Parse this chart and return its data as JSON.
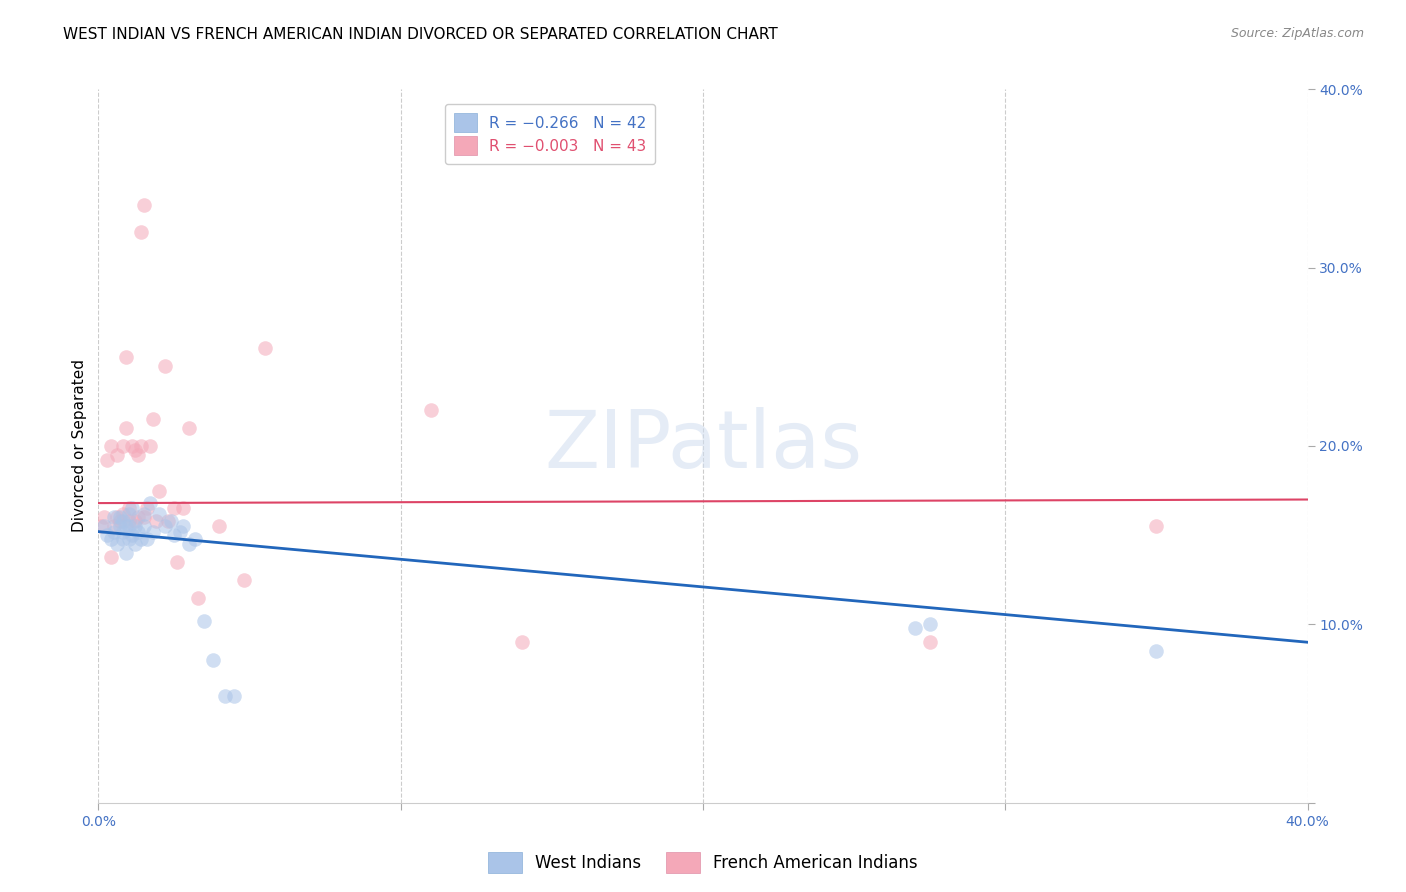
{
  "title": "WEST INDIAN VS FRENCH AMERICAN INDIAN DIVORCED OR SEPARATED CORRELATION CHART",
  "source": "Source: ZipAtlas.com",
  "ylabel": "Divorced or Separated",
  "xlim": [
    0.0,
    0.4
  ],
  "ylim": [
    0.0,
    0.4
  ],
  "xticks": [
    0.0,
    0.1,
    0.2,
    0.3,
    0.4
  ],
  "yticks": [
    0.0,
    0.1,
    0.2,
    0.3,
    0.4
  ],
  "xtick_labels": [
    "0.0%",
    "",
    "",
    "",
    "40.0%"
  ],
  "ytick_labels_right": [
    "",
    "10.0%",
    "20.0%",
    "30.0%",
    "40.0%"
  ],
  "legend_top": [
    {
      "label": "R = −0.266   N = 42",
      "color": "#aac4e8"
    },
    {
      "label": "R = −0.003   N = 43",
      "color": "#f4a8b8"
    }
  ],
  "legend_bottom": [
    {
      "label": "West Indians",
      "color": "#aac4e8"
    },
    {
      "label": "French American Indians",
      "color": "#f4a8b8"
    }
  ],
  "west_indian_x": [
    0.002,
    0.003,
    0.004,
    0.005,
    0.005,
    0.006,
    0.007,
    0.007,
    0.008,
    0.008,
    0.008,
    0.009,
    0.009,
    0.01,
    0.01,
    0.01,
    0.011,
    0.011,
    0.012,
    0.012,
    0.013,
    0.014,
    0.015,
    0.015,
    0.016,
    0.017,
    0.018,
    0.02,
    0.022,
    0.024,
    0.025,
    0.027,
    0.028,
    0.03,
    0.032,
    0.035,
    0.038,
    0.042,
    0.045,
    0.27,
    0.275,
    0.35
  ],
  "west_indian_y": [
    0.155,
    0.15,
    0.148,
    0.152,
    0.16,
    0.145,
    0.155,
    0.16,
    0.148,
    0.152,
    0.158,
    0.14,
    0.155,
    0.148,
    0.155,
    0.162,
    0.15,
    0.165,
    0.145,
    0.155,
    0.152,
    0.148,
    0.155,
    0.162,
    0.148,
    0.168,
    0.152,
    0.162,
    0.155,
    0.158,
    0.15,
    0.152,
    0.155,
    0.145,
    0.148,
    0.102,
    0.08,
    0.06,
    0.06,
    0.098,
    0.1,
    0.085
  ],
  "french_x": [
    0.001,
    0.002,
    0.003,
    0.004,
    0.004,
    0.005,
    0.006,
    0.006,
    0.007,
    0.008,
    0.008,
    0.009,
    0.009,
    0.01,
    0.01,
    0.011,
    0.012,
    0.012,
    0.013,
    0.013,
    0.014,
    0.014,
    0.015,
    0.015,
    0.016,
    0.017,
    0.018,
    0.019,
    0.02,
    0.022,
    0.023,
    0.025,
    0.026,
    0.028,
    0.03,
    0.033,
    0.04,
    0.048,
    0.055,
    0.11,
    0.14,
    0.275,
    0.35
  ],
  "french_y": [
    0.155,
    0.16,
    0.192,
    0.138,
    0.2,
    0.155,
    0.16,
    0.195,
    0.158,
    0.162,
    0.2,
    0.21,
    0.25,
    0.158,
    0.165,
    0.2,
    0.158,
    0.198,
    0.16,
    0.195,
    0.2,
    0.32,
    0.335,
    0.16,
    0.165,
    0.2,
    0.215,
    0.158,
    0.175,
    0.245,
    0.158,
    0.165,
    0.135,
    0.165,
    0.21,
    0.115,
    0.155,
    0.125,
    0.255,
    0.22,
    0.09,
    0.09,
    0.155
  ],
  "blue_line_x": [
    0.0,
    0.4
  ],
  "blue_line_y": [
    0.152,
    0.09
  ],
  "pink_line_x": [
    0.0,
    0.4
  ],
  "pink_line_y": [
    0.168,
    0.17
  ],
  "blue_line_color": "#2266bb",
  "pink_line_color": "#dd4466",
  "blue_dot_color": "#aac4e8",
  "pink_dot_color": "#f4a8b8",
  "grid_color": "#cccccc",
  "background_color": "#ffffff",
  "watermark_text": "ZIPatlas",
  "title_fontsize": 11,
  "axis_label_fontsize": 11,
  "tick_fontsize": 10,
  "dot_size": 110,
  "dot_alpha": 0.55
}
